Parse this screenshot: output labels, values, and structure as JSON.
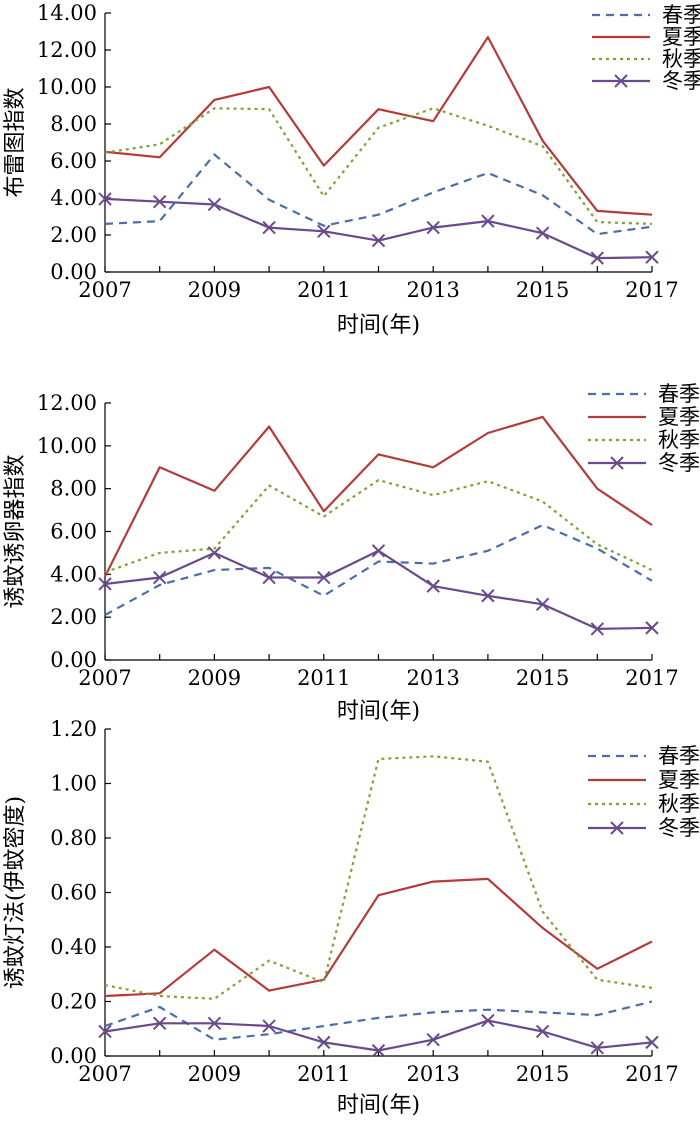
{
  "colors": {
    "spring": "#4a6fa8",
    "summer": "#b53a3a",
    "autumn": "#7fa236",
    "winter": "#6a4a8a",
    "axis": "#000000"
  },
  "chart_data": [
    {
      "type": "line",
      "ylabel": "布雷图指数",
      "xlabel": "时间(年)",
      "x": [
        2007,
        2008,
        2009,
        2010,
        2011,
        2012,
        2013,
        2014,
        2015,
        2016,
        2017
      ],
      "x_tick_labels": [
        "2007",
        "2009",
        "2011",
        "2013",
        "2015",
        "2017"
      ],
      "ylim": [
        0,
        14
      ],
      "y_tick_labels": [
        "0.00",
        "2.00",
        "4.00",
        "6.00",
        "8.00",
        "10.00",
        "12.00",
        "14.00"
      ],
      "legend_position": "top-right",
      "series": [
        {
          "name": "春季",
          "style": "dashed",
          "values": [
            2.6,
            2.75,
            6.35,
            3.9,
            2.5,
            3.1,
            4.3,
            5.35,
            4.15,
            2.05,
            2.45
          ]
        },
        {
          "name": "夏季",
          "style": "solid",
          "values": [
            6.5,
            6.2,
            9.3,
            10.0,
            5.75,
            8.8,
            8.15,
            12.7,
            7.1,
            3.3,
            3.1
          ]
        },
        {
          "name": "秋季",
          "style": "dotted",
          "values": [
            6.45,
            6.9,
            8.85,
            8.8,
            4.1,
            7.8,
            8.85,
            7.9,
            6.8,
            2.7,
            2.6
          ]
        },
        {
          "name": "冬季",
          "style": "cross",
          "values": [
            3.95,
            3.8,
            3.65,
            2.4,
            2.2,
            1.7,
            2.4,
            2.75,
            2.1,
            0.75,
            0.8
          ]
        }
      ]
    },
    {
      "type": "line",
      "ylabel": "诱蚊诱卵器指数",
      "xlabel": "时间(年)",
      "x": [
        2007,
        2008,
        2009,
        2010,
        2011,
        2012,
        2013,
        2014,
        2015,
        2016,
        2017
      ],
      "x_tick_labels": [
        "2007",
        "2009",
        "2011",
        "2013",
        "2015",
        "2017"
      ],
      "ylim": [
        0,
        12
      ],
      "y_tick_labels": [
        "0.00",
        "2.00",
        "4.00",
        "6.00",
        "8.00",
        "10.00",
        "12.00"
      ],
      "legend_position": "top-right",
      "series": [
        {
          "name": "春季",
          "style": "dashed",
          "values": [
            2.1,
            3.5,
            4.2,
            4.3,
            3.0,
            4.6,
            4.5,
            5.1,
            6.3,
            5.2,
            3.7
          ]
        },
        {
          "name": "夏季",
          "style": "solid",
          "values": [
            3.9,
            9.0,
            7.9,
            10.9,
            6.95,
            9.6,
            9.0,
            10.6,
            11.35,
            8.0,
            6.3
          ]
        },
        {
          "name": "秋季",
          "style": "dotted",
          "values": [
            4.1,
            5.0,
            5.2,
            8.15,
            6.7,
            8.4,
            7.7,
            8.35,
            7.4,
            5.4,
            4.2
          ]
        },
        {
          "name": "冬季",
          "style": "cross",
          "values": [
            3.55,
            3.85,
            5.0,
            3.85,
            3.85,
            5.1,
            3.45,
            3.0,
            2.6,
            1.45,
            1.5
          ]
        }
      ]
    },
    {
      "type": "line",
      "ylabel": "诱蚊灯法(伊蚊密度)",
      "xlabel": "时间(年)",
      "x": [
        2007,
        2008,
        2009,
        2010,
        2011,
        2012,
        2013,
        2014,
        2015,
        2016,
        2017
      ],
      "x_tick_labels": [
        "2007",
        "2009",
        "2011",
        "2013",
        "2015",
        "2017"
      ],
      "ylim": [
        0,
        1.2
      ],
      "y_tick_labels": [
        "0.00",
        "0.20",
        "0.40",
        "0.60",
        "0.80",
        "1.00",
        "1.20"
      ],
      "legend_position": "top-right",
      "series": [
        {
          "name": "春季",
          "style": "dashed",
          "values": [
            0.11,
            0.18,
            0.06,
            0.08,
            0.11,
            0.14,
            0.16,
            0.17,
            0.16,
            0.15,
            0.2
          ]
        },
        {
          "name": "夏季",
          "style": "solid",
          "values": [
            0.22,
            0.23,
            0.39,
            0.24,
            0.28,
            0.59,
            0.64,
            0.65,
            0.47,
            0.32,
            0.42
          ]
        },
        {
          "name": "秋季",
          "style": "dotted",
          "values": [
            0.26,
            0.22,
            0.21,
            0.35,
            0.27,
            1.09,
            1.1,
            1.08,
            0.53,
            0.28,
            0.25
          ]
        },
        {
          "name": "冬季",
          "style": "cross",
          "values": [
            0.09,
            0.12,
            0.12,
            0.11,
            0.05,
            0.02,
            0.06,
            0.13,
            0.09,
            0.03,
            0.05
          ]
        }
      ]
    }
  ]
}
